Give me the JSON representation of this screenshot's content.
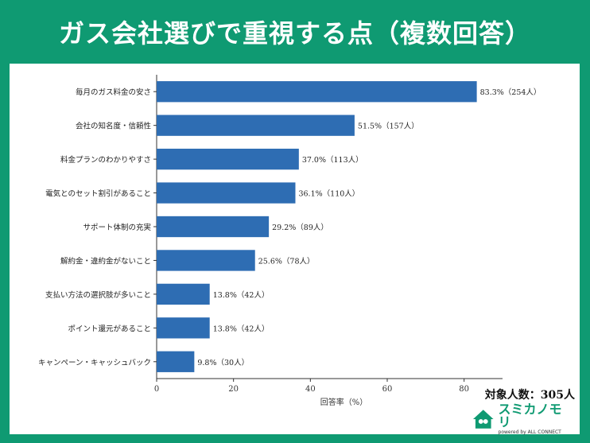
{
  "header": {
    "title": "ガス会社選びで重視する点（複数回答）"
  },
  "chart_data": {
    "type": "bar",
    "orientation": "horizontal",
    "categories": [
      "毎月のガス料金の安さ",
      "会社の知名度・信頼性",
      "料金プランのわかりやすさ",
      "電気とのセット割引があること",
      "サポート体制の充実",
      "解約金・違約金がないこと",
      "支払い方法の選択肢が多いこと",
      "ポイント還元があること",
      "キャンペーン・キャッシュバック"
    ],
    "values": [
      83.3,
      51.5,
      37.0,
      36.1,
      29.2,
      25.6,
      13.8,
      13.8,
      9.8
    ],
    "data_labels": [
      "83.3%（254人）",
      "51.5%（157人）",
      "37.0%（113人）",
      "36.1%（110人）",
      "29.2%（89人）",
      "25.6%（78人）",
      "13.8%（42人）",
      "13.8%（42人）",
      "9.8%（30人）"
    ],
    "xlabel": "回答率（%）",
    "ylabel": "",
    "xlim": [
      0,
      90
    ],
    "xticks": [
      0,
      20,
      40,
      60,
      80
    ],
    "grid": false,
    "bar_color": "#2e6db3"
  },
  "note": {
    "sample_size": "対象人数：305人"
  },
  "logo": {
    "name": "スミカノモリ",
    "sub": "powered by ALL CONNECT"
  },
  "colors": {
    "background": "#0f9a72",
    "panel": "#ffffff",
    "bar": "#2e6db3"
  }
}
